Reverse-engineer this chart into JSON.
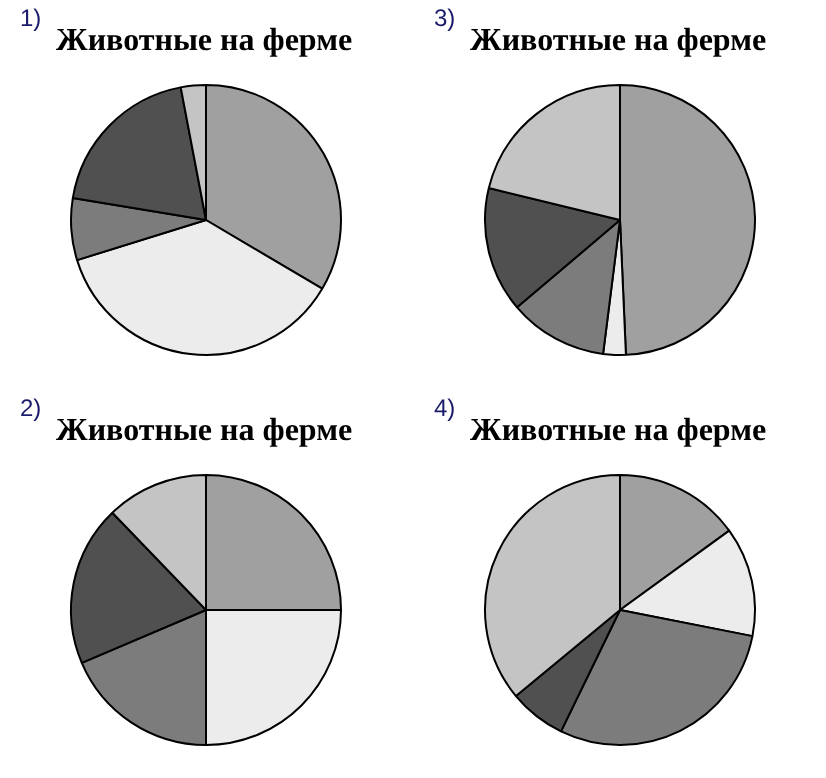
{
  "chart_data": [
    {
      "type": "pie",
      "title": "Животные на ферме",
      "annotations": [
        "1)"
      ],
      "categories": [
        null,
        null,
        null,
        null,
        null
      ],
      "values": [
        33.5,
        36.7,
        7.4,
        19.4,
        3.0
      ],
      "colors": [
        "#a0a0a0",
        "#ececec",
        "#7c7c7c",
        "#505050",
        "#c4c4c4"
      ],
      "legend": false
    },
    {
      "type": "pie",
      "title": "Животные на ферме",
      "annotations": [
        "3)"
      ],
      "categories": [
        null,
        null,
        null,
        null,
        null
      ],
      "values": [
        49.3,
        2.7,
        11.8,
        15.0,
        21.2
      ],
      "colors": [
        "#a0a0a0",
        "#ececec",
        "#7c7c7c",
        "#505050",
        "#c4c4c4"
      ],
      "legend": false
    },
    {
      "type": "pie",
      "title": "Животные на ферме",
      "annotations": [
        "2)"
      ],
      "categories": [
        null,
        null,
        null,
        null,
        null
      ],
      "values": [
        25.0,
        25.0,
        18.6,
        19.2,
        12.2
      ],
      "colors": [
        "#a0a0a0",
        "#ececec",
        "#7c7c7c",
        "#505050",
        "#c4c4c4"
      ],
      "legend": false
    },
    {
      "type": "pie",
      "title": "Животные на ферме",
      "annotations": [
        "4)"
      ],
      "categories": [
        null,
        null,
        null,
        null,
        null
      ],
      "values": [
        15.0,
        13.1,
        29.1,
        6.8,
        36.0
      ],
      "colors": [
        "#a0a0a0",
        "#ececec",
        "#7c7c7c",
        "#505050",
        "#c4c4c4"
      ],
      "legend": false
    }
  ]
}
